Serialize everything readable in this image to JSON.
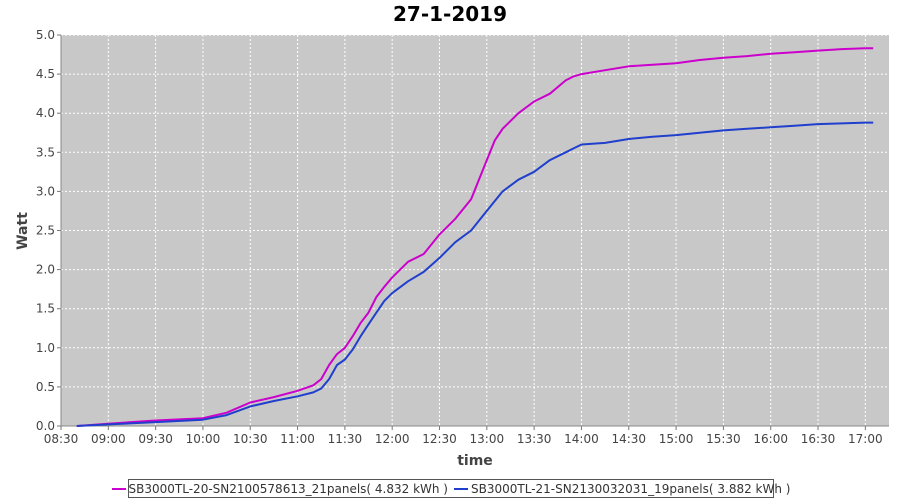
{
  "chart_data": {
    "type": "line",
    "title": "27-1-2019",
    "xlabel": "time",
    "ylabel": "Watt",
    "ylim": [
      0.0,
      5.0
    ],
    "xlim": [
      "08:30",
      "17:15"
    ],
    "y_ticks": [
      "0.0",
      "0.5",
      "1.0",
      "1.5",
      "2.0",
      "2.5",
      "3.0",
      "3.5",
      "4.0",
      "4.5",
      "5.0"
    ],
    "x_ticks": [
      "08:30",
      "09:00",
      "09:30",
      "10:00",
      "10:30",
      "11:00",
      "11:30",
      "12:00",
      "12:30",
      "13:00",
      "13:30",
      "14:00",
      "14:30",
      "15:00",
      "15:30",
      "16:00",
      "16:30",
      "17:00"
    ],
    "grid": true,
    "legend_position": "bottom",
    "plot_background": "#c8c8c8",
    "series": [
      {
        "name": "SB3000TL-20-SN2100578613_21panels( 4.832 kWh )",
        "color": "#cc00cc",
        "x": [
          "08:40",
          "09:00",
          "09:30",
          "10:00",
          "10:15",
          "10:30",
          "10:45",
          "11:00",
          "11:10",
          "11:15",
          "11:20",
          "11:25",
          "11:30",
          "11:35",
          "11:40",
          "11:45",
          "11:50",
          "11:55",
          "12:00",
          "12:10",
          "12:20",
          "12:30",
          "12:40",
          "12:50",
          "13:00",
          "13:05",
          "13:10",
          "13:20",
          "13:30",
          "13:40",
          "13:50",
          "13:55",
          "14:00",
          "14:15",
          "14:30",
          "14:45",
          "15:00",
          "15:15",
          "15:30",
          "15:45",
          "16:00",
          "16:15",
          "16:30",
          "16:45",
          "17:00",
          "17:05"
        ],
        "values": [
          0.0,
          0.03,
          0.07,
          0.1,
          0.17,
          0.3,
          0.37,
          0.45,
          0.52,
          0.6,
          0.78,
          0.92,
          1.0,
          1.15,
          1.32,
          1.45,
          1.65,
          1.78,
          1.9,
          2.1,
          2.2,
          2.45,
          2.65,
          2.9,
          3.4,
          3.65,
          3.8,
          4.0,
          4.15,
          4.25,
          4.42,
          4.47,
          4.5,
          4.55,
          4.6,
          4.62,
          4.64,
          4.68,
          4.71,
          4.73,
          4.76,
          4.78,
          4.8,
          4.82,
          4.83,
          4.83
        ]
      },
      {
        "name": "SB3000TL-21-SN2130032031_19panels( 3.882 kWh )",
        "color": "#1f3fcc",
        "x": [
          "08:40",
          "09:00",
          "09:30",
          "10:00",
          "10:15",
          "10:30",
          "10:45",
          "11:00",
          "11:10",
          "11:15",
          "11:20",
          "11:25",
          "11:30",
          "11:35",
          "11:40",
          "11:45",
          "11:50",
          "11:55",
          "12:00",
          "12:10",
          "12:20",
          "12:30",
          "12:40",
          "12:50",
          "13:00",
          "13:10",
          "13:20",
          "13:30",
          "13:40",
          "13:50",
          "13:55",
          "14:00",
          "14:15",
          "14:30",
          "14:45",
          "15:00",
          "15:15",
          "15:30",
          "15:45",
          "16:00",
          "16:15",
          "16:30",
          "16:45",
          "17:00",
          "17:05"
        ],
        "values": [
          0.0,
          0.02,
          0.05,
          0.08,
          0.14,
          0.25,
          0.32,
          0.38,
          0.43,
          0.48,
          0.6,
          0.78,
          0.85,
          0.98,
          1.15,
          1.3,
          1.45,
          1.6,
          1.7,
          1.85,
          1.97,
          2.15,
          2.35,
          2.5,
          2.75,
          3.0,
          3.15,
          3.25,
          3.4,
          3.5,
          3.55,
          3.6,
          3.62,
          3.67,
          3.7,
          3.72,
          3.75,
          3.78,
          3.8,
          3.82,
          3.84,
          3.86,
          3.87,
          3.88,
          3.88
        ]
      }
    ]
  }
}
